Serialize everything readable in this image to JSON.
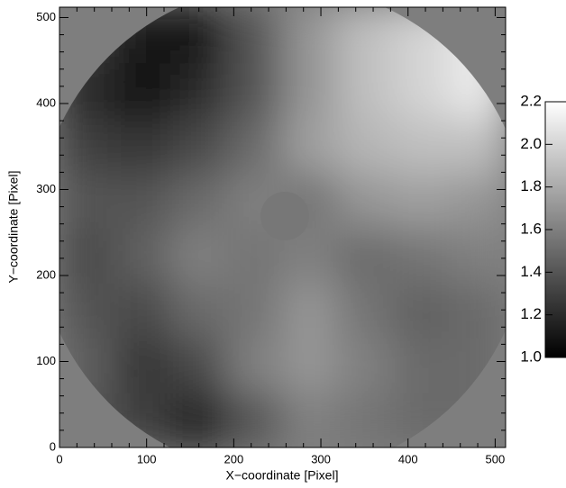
{
  "chart_data": {
    "type": "image",
    "xlabel": "X−coordinate [Pixel]",
    "ylabel": "Y−coordinate [Pixel]",
    "xlim": [
      0,
      512
    ],
    "ylim": [
      0,
      512
    ],
    "xticks": [
      0,
      100,
      200,
      300,
      400,
      500
    ],
    "yticks": [
      0,
      100,
      200,
      300,
      400,
      500
    ],
    "x": [
      32,
      96,
      160,
      224,
      288,
      352,
      416,
      480
    ],
    "y": [
      32,
      96,
      160,
      224,
      288,
      352,
      416,
      480
    ],
    "z": [
      [
        1.4,
        1.3,
        1.15,
        1.4,
        1.6,
        1.55,
        1.5,
        1.5
      ],
      [
        1.45,
        1.25,
        1.35,
        1.6,
        1.7,
        1.6,
        1.5,
        1.5
      ],
      [
        1.4,
        1.35,
        1.5,
        1.55,
        1.7,
        1.55,
        1.45,
        1.5
      ],
      [
        1.35,
        1.45,
        1.6,
        1.55,
        1.6,
        1.5,
        1.55,
        1.6
      ],
      [
        1.4,
        1.4,
        1.5,
        1.6,
        1.55,
        1.7,
        1.75,
        1.7
      ],
      [
        1.3,
        1.25,
        1.35,
        1.5,
        1.75,
        1.85,
        1.9,
        1.9
      ],
      [
        1.2,
        1.05,
        1.2,
        1.4,
        1.7,
        1.9,
        2.0,
        2.1
      ],
      [
        1.3,
        1.1,
        1.1,
        1.4,
        1.7,
        1.9,
        2.0,
        2.1
      ]
    ],
    "clim": [
      1.0,
      2.2
    ],
    "cticks": [
      {
        "value": 1.0,
        "label": "1.0"
      },
      1.2,
      1.4,
      1.6,
      1.8,
      {
        "value": 2.0,
        "label": "2.0"
      },
      2.2
    ]
  }
}
